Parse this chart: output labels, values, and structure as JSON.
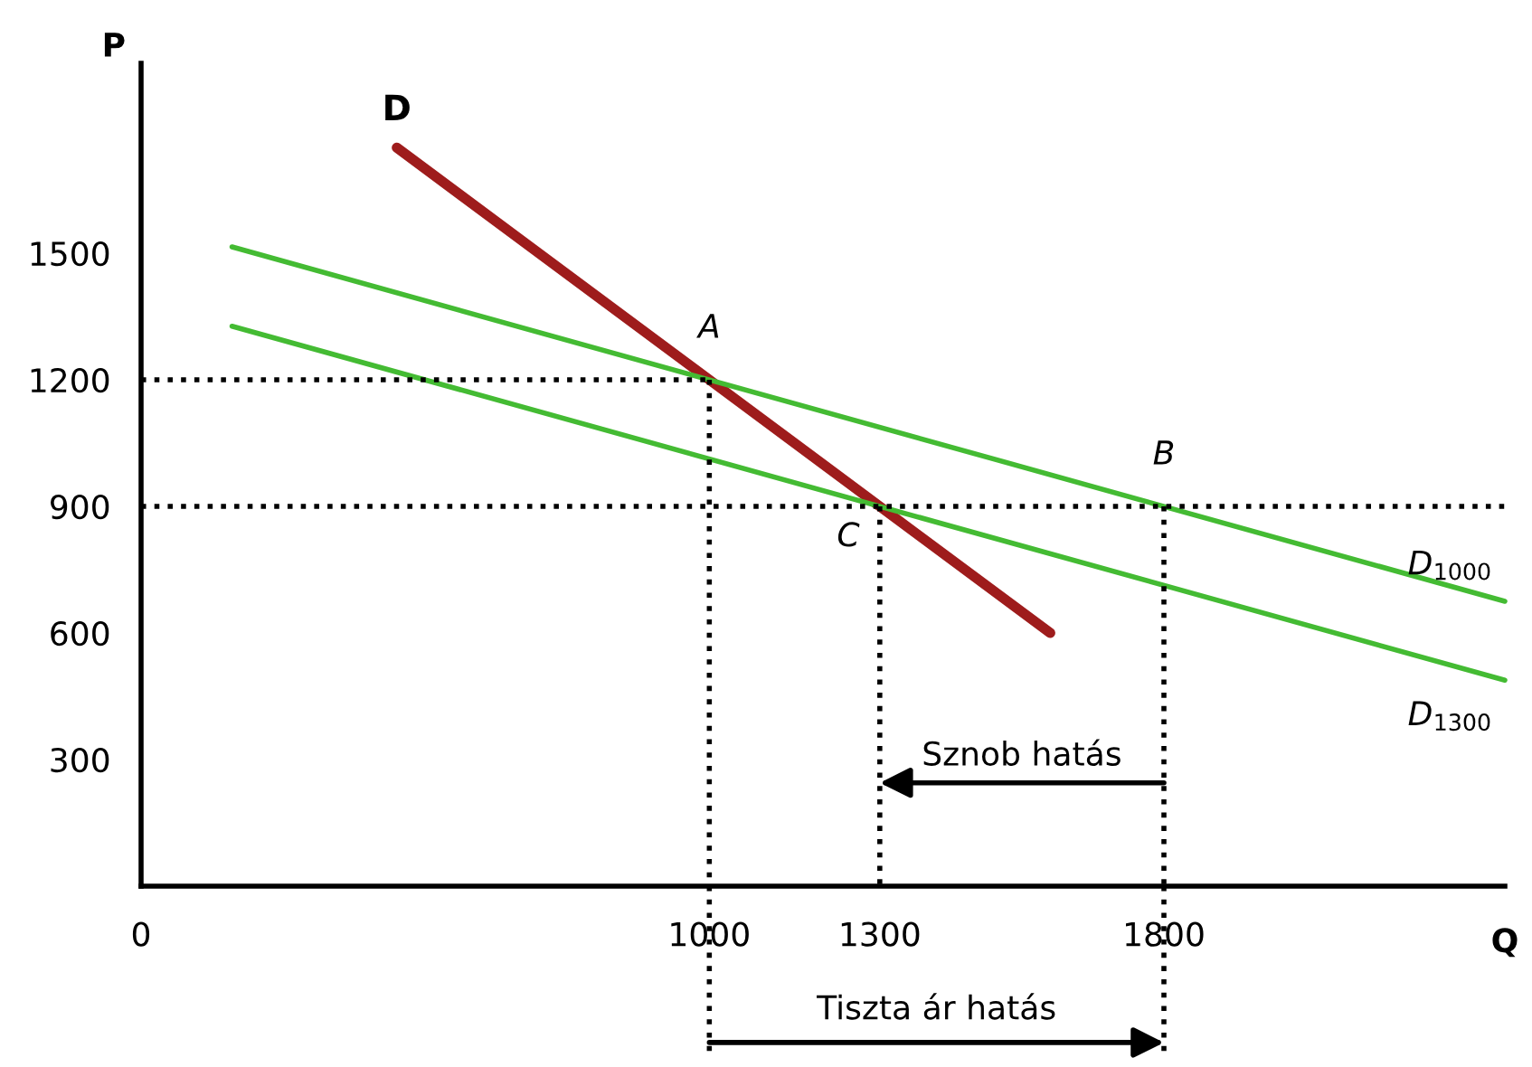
{
  "chart_data": {
    "type": "line",
    "xlabel": "Q",
    "ylabel": "P",
    "xlim": [
      0,
      2400
    ],
    "ylim": [
      0,
      1950
    ],
    "xticks": [
      0,
      1000,
      1300,
      1800
    ],
    "yticks": [
      300,
      600,
      900,
      1200,
      1500
    ],
    "grid": false,
    "series": [
      {
        "name": "D",
        "color": "#9e1c1c",
        "x": [
          450,
          1600
        ],
        "values": [
          1750,
          600
        ]
      },
      {
        "name": "D$_{1000}$",
        "color": "#44bb33",
        "x": [
          160,
          2400
        ],
        "values": [
          1515,
          675
        ]
      },
      {
        "name": "D$_{1300}$",
        "color": "#44bb33",
        "x": [
          160,
          2400
        ],
        "values": [
          1327,
          488
        ]
      },
      {
        "color": "#000000",
        "line_style": "dotted",
        "x": [
          0,
          1000
        ],
        "values": [
          1200,
          1200
        ]
      },
      {
        "color": "#000000",
        "line_style": "dotted",
        "x": [
          0,
          2400
        ],
        "values": [
          900,
          900
        ]
      },
      {
        "color": "#000000",
        "line_style": "dotted",
        "x": [
          1000,
          1000
        ],
        "values": [
          1200,
          0
        ]
      },
      {
        "color": "#000000",
        "line_style": "dotted",
        "x": [
          1300,
          1300
        ],
        "values": [
          900,
          0
        ]
      },
      {
        "color": "#000000",
        "line_style": "dotted",
        "x": [
          1800,
          1800
        ],
        "values": [
          900,
          0
        ]
      }
    ],
    "annotations": [
      {
        "text": "A",
        "x": 1000,
        "y": 1200
      },
      {
        "text": "B",
        "x": 1800,
        "y": 900
      },
      {
        "text": "C",
        "x": 1300,
        "y": 900
      },
      {
        "text": "Sznob hatás",
        "x": 1300,
        "y": 245
      },
      "Tiszta ár hatás"
    ]
  }
}
